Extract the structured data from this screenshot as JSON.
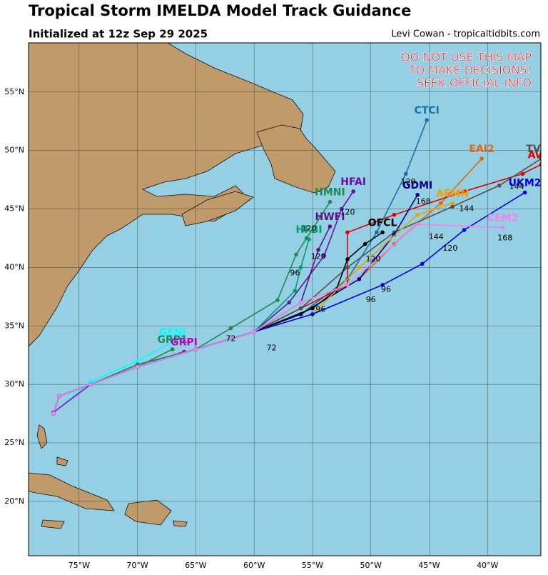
{
  "map": {
    "title": "Tropical Storm IMELDA Model Track Guidance",
    "subtitle": "Initialized at 12z Sep 29 2025",
    "credit": "Levi Cowan - tropicaltidbits.com",
    "warning": [
      "DO NOT USE THIS MAP",
      "TO MAKE DECISIONS!",
      "SEEK OFFICIAL INFO"
    ],
    "lonlim": [
      -79.33,
      -35.43
    ],
    "latlim": [
      15.35,
      59.2
    ],
    "lonticks": [
      {
        "value": -75,
        "label": "75°W"
      },
      {
        "value": -70,
        "label": "70°W"
      },
      {
        "value": -65,
        "label": "65°W"
      },
      {
        "value": -60,
        "label": "60°W"
      },
      {
        "value": -55,
        "label": "55°W"
      },
      {
        "value": -50,
        "label": "50°W"
      },
      {
        "value": -45,
        "label": "45°W"
      },
      {
        "value": -40,
        "label": "40°W"
      }
    ],
    "latticks": [
      {
        "value": 20,
        "label": "20°N"
      },
      {
        "value": 25,
        "label": "25°N"
      },
      {
        "value": 30,
        "label": "30°N"
      },
      {
        "value": 35,
        "label": "35°N"
      },
      {
        "value": 40,
        "label": "40°N"
      },
      {
        "value": 45,
        "label": "45°N"
      },
      {
        "value": 50,
        "label": "50°N"
      },
      {
        "value": 55,
        "label": "55°N"
      }
    ],
    "tracks": [
      {
        "name": "GENI",
        "color": "#00ffff",
        "lon": [
          -77.2,
          -74,
          -70,
          -67
        ],
        "lat": [
          27.6,
          30.2,
          32,
          33.6
        ]
      },
      {
        "name": "GRP1",
        "color": "#109060",
        "lon": [
          -77.2,
          -74,
          -70,
          -67
        ],
        "lat": [
          27.6,
          30,
          31.5,
          33
        ]
      },
      {
        "name": "GRPI",
        "color": "#c000c0",
        "lon": [
          -77.2,
          -74,
          -70,
          -66
        ],
        "lat": [
          27.6,
          30,
          31.5,
          32.8
        ]
      },
      {
        "name": "CTCI",
        "color": "#1a70a8",
        "lon": [
          -77.2,
          -76.7,
          -74,
          -70,
          -65,
          -60,
          -56,
          -52,
          -49.5,
          -47,
          -45.2
        ],
        "lat": [
          27.5,
          29,
          30,
          31.5,
          33,
          34.5,
          36,
          39,
          43,
          48,
          52.6
        ]
      },
      {
        "name": "EAI2",
        "color": "#e8650f",
        "lon": [
          -77.2,
          -76.7,
          -74,
          -70,
          -65,
          -60,
          -56,
          -51,
          -48,
          -44,
          -40.5
        ],
        "lat": [
          27.5,
          29,
          30,
          31.5,
          33,
          34.5,
          36,
          39,
          42,
          45.5,
          49.3
        ]
      },
      {
        "name": "AVNI",
        "color": "#e00000",
        "lon": [
          -77.2,
          -76.7,
          -74,
          -70,
          -65,
          -60,
          -56,
          -52,
          -52,
          -48,
          -42,
          -37,
          -35.4
        ],
        "lat": [
          27.5,
          29,
          30,
          31.5,
          33,
          34.5,
          36.5,
          38.5,
          43,
          44.5,
          46.5,
          48,
          48.8
        ]
      },
      {
        "name": "TVCN",
        "color": "#505050",
        "lon": [
          -77.2,
          -76.7,
          -74,
          -70,
          -65,
          -60,
          -56,
          -52,
          -48,
          -43,
          -39,
          -35.4
        ],
        "lat": [
          27.5,
          29,
          30,
          31.5,
          33,
          34.5,
          36.5,
          40,
          43,
          45.2,
          47,
          49.3
        ]
      },
      {
        "name": "GDMI",
        "color": "#000080",
        "lon": [
          -77.2,
          -76.7,
          -74,
          -70,
          -65,
          -60,
          -56,
          -51,
          -48,
          -46
        ],
        "lat": [
          27.5,
          29,
          30,
          31.5,
          33,
          34.5,
          36,
          39,
          42.8,
          46.2
        ]
      },
      {
        "name": "HFAI",
        "color": "#6a0dad",
        "lon": [
          -77.2,
          -76.7,
          -74,
          -70,
          -65,
          -60,
          -57,
          -54,
          -52.5,
          -51.5
        ],
        "lat": [
          27.5,
          29,
          30,
          31.5,
          33,
          34.5,
          37,
          41,
          45,
          46.5
        ]
      },
      {
        "name": "HMNI",
        "color": "#1a8a50",
        "lon": [
          -77.2,
          -76.7,
          -74,
          -70,
          -65,
          -62,
          -58,
          -56.4,
          -55.5,
          -53.5
        ],
        "lat": [
          27.5,
          29,
          30,
          31.7,
          33,
          34.8,
          37.2,
          41.1,
          42.5,
          45.6
        ]
      },
      {
        "name": "HWFI",
        "color": "#5b1080",
        "lon": [
          -77.2,
          -76.7,
          -74,
          -70,
          -65,
          -60,
          -56,
          -54.5,
          -53.5
        ],
        "lat": [
          27.5,
          29,
          30,
          31.5,
          33,
          34.5,
          37,
          41.5,
          43.5
        ]
      },
      {
        "name": "HFBI",
        "color": "#00a070",
        "lon": [
          -77.2,
          -76.7,
          -74,
          -70,
          -65,
          -60,
          -56.5,
          -56,
          -55.3
        ],
        "lat": [
          27.5,
          29,
          30,
          31.5,
          33,
          34.5,
          38,
          40,
          42.4
        ]
      },
      {
        "name": "OFCL",
        "color": "#000000",
        "lon": [
          -77.2,
          -76.7,
          -74,
          -70,
          -65,
          -60,
          -55,
          -53,
          -52,
          -50.5,
          -49
        ],
        "lat": [
          27.5,
          29,
          30,
          31.5,
          33,
          34.5,
          36.5,
          38,
          40.7,
          42,
          43
        ]
      },
      {
        "name": "AEMN",
        "color": "#f0a000",
        "lon": [
          -77.2,
          -76.7,
          -74,
          -70,
          -65,
          -60,
          -55,
          -51,
          -46,
          -43
        ],
        "lat": [
          27.5,
          29,
          30,
          31.5,
          33,
          34.5,
          36,
          40,
          44.5,
          45.5
        ]
      },
      {
        "name": "UKM2",
        "color": "#0000e0",
        "lon": [
          -77.2,
          -76.7,
          -74,
          -70,
          -65,
          -60,
          -55,
          -49,
          -45.6,
          -42,
          -36.8
        ],
        "lat": [
          27.5,
          29,
          30,
          31.5,
          33,
          34.5,
          36,
          38.5,
          40.3,
          43.2,
          46.4
        ]
      },
      {
        "name": "CEM2",
        "color": "#ee82ee",
        "lon": [
          -77.2,
          -76.7,
          -74,
          -70,
          -65,
          -60,
          -56,
          -52,
          -46,
          -38.7
        ],
        "lat": [
          27.5,
          29,
          30,
          31.5,
          33,
          34.5,
          37,
          38.5,
          43.7,
          43.4
        ]
      }
    ],
    "hour_labels": [
      {
        "text": "72",
        "lon": -62,
        "lat": 33.9
      },
      {
        "text": "72",
        "lon": -58.5,
        "lat": 33.1
      },
      {
        "text": "96",
        "lon": -56.5,
        "lat": 39.5
      },
      {
        "text": "96",
        "lon": -54.3,
        "lat": 36.4
      },
      {
        "text": "96",
        "lon": -50,
        "lat": 37.2
      },
      {
        "text": "96",
        "lon": -48.7,
        "lat": 38.1
      },
      {
        "text": "120",
        "lon": -55.3,
        "lat": 43.3
      },
      {
        "text": "120",
        "lon": -54.5,
        "lat": 40.9
      },
      {
        "text": "120",
        "lon": -52,
        "lat": 44.7
      },
      {
        "text": "120",
        "lon": -49.8,
        "lat": 40.7
      },
      {
        "text": "120",
        "lon": -46.8,
        "lat": 47.3
      },
      {
        "text": "120",
        "lon": -43.2,
        "lat": 41.6
      },
      {
        "text": "144",
        "lon": -44.4,
        "lat": 42.6
      },
      {
        "text": "144",
        "lon": -41.8,
        "lat": 45
      },
      {
        "text": "144",
        "lon": -37.5,
        "lat": 46.9
      },
      {
        "text": "168",
        "lon": -45.5,
        "lat": 45.6
      },
      {
        "text": "168",
        "lon": -38.5,
        "lat": 42.5
      }
    ]
  }
}
